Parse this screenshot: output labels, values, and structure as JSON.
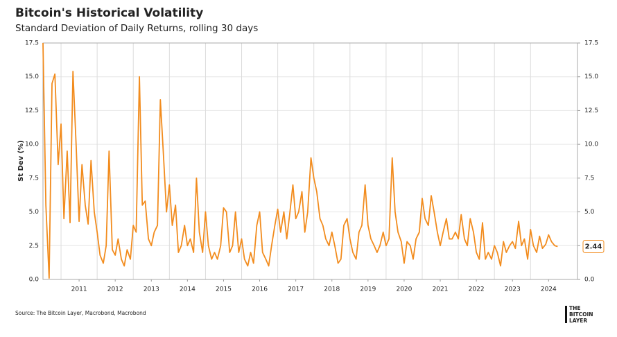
{
  "chart_data": {
    "type": "line",
    "title": "Bitcoin's Historical Volatility",
    "subtitle": "Standard Deviation of Daily Returns, rolling 30 days",
    "ylabel": "St Dev (%)",
    "source": "Source: The Bitcoin Layer, Macrobond, Macrobond",
    "logo": [
      "THE",
      "BITCOIN",
      "LAYER"
    ],
    "xlim": [
      2010.5,
      2025.3
    ],
    "xticks": [
      {
        "value": 2011.5,
        "label": "2011"
      },
      {
        "value": 2012.5,
        "label": "2012"
      },
      {
        "value": 2013.5,
        "label": "2013"
      },
      {
        "value": 2014.5,
        "label": "2014"
      },
      {
        "value": 2015.5,
        "label": "2015"
      },
      {
        "value": 2016.5,
        "label": "2016"
      },
      {
        "value": 2017.5,
        "label": "2017"
      },
      {
        "value": 2018.5,
        "label": "2018"
      },
      {
        "value": 2019.5,
        "label": "2019"
      },
      {
        "value": 2020.5,
        "label": "2020"
      },
      {
        "value": 2021.5,
        "label": "2021"
      },
      {
        "value": 2022.5,
        "label": "2022"
      },
      {
        "value": 2023.5,
        "label": "2023"
      },
      {
        "value": 2024.5,
        "label": "2024"
      }
    ],
    "xgrid": [
      2011,
      2012,
      2013,
      2014,
      2015,
      2016,
      2017,
      2018,
      2019,
      2020,
      2021,
      2022,
      2023,
      2024
    ],
    "ylim": [
      0,
      17.5
    ],
    "yticks": [
      {
        "value": 0,
        "label": "0.0"
      },
      {
        "value": 2.5,
        "label": "2.5"
      },
      {
        "value": 5,
        "label": "5.0"
      },
      {
        "value": 7.5,
        "label": "7.5"
      },
      {
        "value": 10,
        "label": "10.0"
      },
      {
        "value": 12.5,
        "label": "12.5"
      },
      {
        "value": 15,
        "label": "15.0"
      },
      {
        "value": 17.5,
        "label": "17.5"
      }
    ],
    "y2lim": [
      0,
      17.5
    ],
    "y2ticks": [
      {
        "value": 0,
        "label": "0.0"
      },
      {
        "value": 2.5,
        "label": "2.5"
      },
      {
        "value": 5,
        "label": "5.0"
      },
      {
        "value": 7.5,
        "label": "7.5"
      },
      {
        "value": 10,
        "label": "10.0"
      },
      {
        "value": 12.5,
        "label": "12.5"
      },
      {
        "value": 15,
        "label": "15.0"
      },
      {
        "value": 17.5,
        "label": "17.5"
      }
    ],
    "grid": true,
    "x": [
      2010.5,
      2010.58,
      2010.67,
      2010.75,
      2010.83,
      2010.92,
      2011,
      2011.08,
      2011.17,
      2011.25,
      2011.33,
      2011.42,
      2011.5,
      2011.58,
      2011.67,
      2011.75,
      2011.83,
      2011.92,
      2012,
      2012.08,
      2012.17,
      2012.25,
      2012.33,
      2012.42,
      2012.5,
      2012.58,
      2012.67,
      2012.75,
      2012.83,
      2012.92,
      2013,
      2013.08,
      2013.17,
      2013.25,
      2013.33,
      2013.42,
      2013.5,
      2013.58,
      2013.67,
      2013.75,
      2013.83,
      2013.92,
      2014,
      2014.08,
      2014.17,
      2014.25,
      2014.33,
      2014.42,
      2014.5,
      2014.58,
      2014.67,
      2014.75,
      2014.83,
      2014.92,
      2015,
      2015.08,
      2015.17,
      2015.25,
      2015.33,
      2015.42,
      2015.5,
      2015.58,
      2015.67,
      2015.75,
      2015.83,
      2015.92,
      2016,
      2016.08,
      2016.17,
      2016.25,
      2016.33,
      2016.42,
      2016.5,
      2016.58,
      2016.67,
      2016.75,
      2016.83,
      2016.92,
      2017,
      2017.08,
      2017.17,
      2017.25,
      2017.33,
      2017.42,
      2017.5,
      2017.58,
      2017.67,
      2017.75,
      2017.83,
      2017.92,
      2018,
      2018.08,
      2018.17,
      2018.25,
      2018.33,
      2018.42,
      2018.5,
      2018.58,
      2018.67,
      2018.75,
      2018.83,
      2018.92,
      2019,
      2019.08,
      2019.17,
      2019.25,
      2019.33,
      2019.42,
      2019.5,
      2019.58,
      2019.67,
      2019.75,
      2019.83,
      2019.92,
      2020,
      2020.08,
      2020.17,
      2020.25,
      2020.33,
      2020.42,
      2020.5,
      2020.58,
      2020.67,
      2020.75,
      2020.83,
      2020.92,
      2021,
      2021.08,
      2021.17,
      2021.25,
      2021.33,
      2021.42,
      2021.5,
      2021.58,
      2021.67,
      2021.75,
      2021.83,
      2021.92,
      2022,
      2022.08,
      2022.17,
      2022.25,
      2022.33,
      2022.42,
      2022.5,
      2022.58,
      2022.67,
      2022.75,
      2022.83,
      2022.92,
      2023,
      2023.08,
      2023.17,
      2023.25,
      2023.33,
      2023.42,
      2023.5,
      2023.58,
      2023.67,
      2023.75,
      2023.83,
      2023.92,
      2024,
      2024.08,
      2024.17,
      2024.25,
      2024.33,
      2024.42,
      2024.5,
      2024.58,
      2024.67,
      2024.75
    ],
    "series": [
      {
        "name": "St Dev",
        "color": "#f28c1e",
        "values": [
          17.5,
          5.5,
          0.1,
          14.5,
          15.2,
          8.5,
          11.5,
          4.5,
          9.5,
          4.2,
          15.4,
          9.8,
          4.3,
          8.5,
          5.5,
          4.1,
          8.8,
          5,
          3.5,
          1.8,
          1.2,
          2.5,
          9.5,
          2.2,
          1.8,
          3,
          1.5,
          1.0,
          2.2,
          1.5,
          4,
          3.5,
          15,
          5.5,
          5.8,
          3,
          2.5,
          3.5,
          4,
          13.3,
          9.5,
          5,
          7,
          4,
          5.5,
          2,
          2.5,
          4,
          2.5,
          3,
          2,
          7.5,
          3.5,
          2,
          5,
          2.5,
          1.5,
          2,
          1.5,
          2.5,
          5.3,
          5,
          2,
          2.5,
          5,
          2,
          3,
          1.5,
          1,
          2,
          1.2,
          4,
          5,
          2,
          1.5,
          1,
          2.5,
          4,
          5.2,
          3.5,
          5,
          3,
          4.8,
          7,
          4.5,
          5,
          6.5,
          3.5,
          5,
          9,
          7.5,
          6.5,
          4.5,
          4,
          3,
          2.5,
          3.5,
          2.5,
          1.2,
          1.5,
          4,
          4.5,
          3,
          2,
          1.5,
          3.5,
          4,
          7,
          4,
          3,
          2.5,
          2,
          2.5,
          3.5,
          2.5,
          3,
          9,
          5,
          3.5,
          2.8,
          1.2,
          2.8,
          2.5,
          1.5,
          3,
          3.5,
          6,
          4.5,
          4,
          6.2,
          5,
          3.5,
          2.5,
          3.5,
          4.5,
          3,
          3,
          3.5,
          3,
          4.8,
          3,
          2.5,
          4.5,
          3.5,
          2,
          1.5,
          4.2,
          1.5,
          2,
          1.5,
          2.5,
          2,
          1,
          2.8,
          2,
          2.5,
          2.8,
          2.3,
          4.3,
          2.5,
          3,
          1.5,
          3.7,
          2.5,
          2,
          3.2,
          2.3,
          2.6,
          3.3,
          2.8,
          2.5,
          2.44
        ]
      }
    ]
  }
}
